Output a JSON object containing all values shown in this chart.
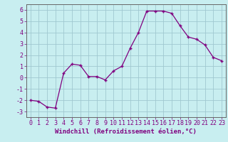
{
  "x": [
    0,
    1,
    2,
    3,
    4,
    5,
    6,
    7,
    8,
    9,
    10,
    11,
    12,
    13,
    14,
    15,
    16,
    17,
    18,
    19,
    20,
    21,
    22,
    23
  ],
  "y": [
    -2.0,
    -2.1,
    -2.6,
    -2.7,
    0.4,
    1.2,
    1.1,
    0.1,
    0.1,
    -0.2,
    0.6,
    1.0,
    2.6,
    4.0,
    5.9,
    5.9,
    5.9,
    5.7,
    4.6,
    3.6,
    3.4,
    2.9,
    1.8,
    1.5
  ],
  "line_color": "#800080",
  "marker_color": "#800080",
  "bg_color": "#c8eef0",
  "grid_color": "#a0c8d0",
  "xlabel": "Windchill (Refroidissement éolien,°C)",
  "ylim": [
    -3.5,
    6.5
  ],
  "yticks": [
    -3,
    -2,
    -1,
    0,
    1,
    2,
    3,
    4,
    5,
    6
  ],
  "xlim": [
    -0.5,
    23.5
  ],
  "xticks": [
    0,
    1,
    2,
    3,
    4,
    5,
    6,
    7,
    8,
    9,
    10,
    11,
    12,
    13,
    14,
    15,
    16,
    17,
    18,
    19,
    20,
    21,
    22,
    23
  ],
  "label_fontsize": 6.5,
  "tick_fontsize": 6
}
